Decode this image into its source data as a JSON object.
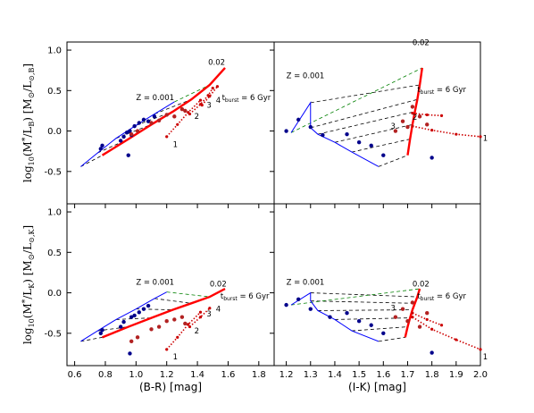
{
  "chart_data": {
    "type": "line",
    "figure_type": "2x2 grid of mass-to-light ratio vs colour model grids with data points",
    "panels": [
      {
        "id": "top-left",
        "xlabel": "",
        "ylabel": "log10(M*/L_B)  [M_sun/L_sun,B]",
        "xlim": [
          0.55,
          1.9
        ],
        "ylim": [
          -0.9,
          1.1
        ],
        "xticks": [],
        "yticks": [
          "1.0",
          "0.5",
          "0.0",
          "-0.5"
        ],
        "annotations": [
          {
            "text": "Z = 0.001",
            "x": 1.0,
            "y": 0.38
          },
          {
            "text": "0.02",
            "x": 1.47,
            "y": 0.82
          },
          {
            "text": "t_burst = 6 Gyr",
            "x": 1.56,
            "y": 0.38
          },
          {
            "text": "1",
            "x": 1.24,
            "y": -0.2
          },
          {
            "text": "2",
            "x": 1.38,
            "y": 0.15
          },
          {
            "text": "3",
            "x": 1.46,
            "y": 0.29
          },
          {
            "text": "4",
            "x": 1.52,
            "y": 0.35
          }
        ],
        "series": [
          {
            "role": "Z=0.001 track",
            "color": "#0000ff",
            "style": "solid",
            "x": [
              0.64,
              0.75,
              0.87,
              1.0,
              1.12,
              1.25
            ],
            "y": [
              -0.44,
              -0.27,
              -0.09,
              0.07,
              0.21,
              0.36
            ]
          },
          {
            "role": "Z=0.02 track",
            "color": "#ff0000",
            "style": "solid",
            "x": [
              0.78,
              0.95,
              1.1,
              1.24,
              1.36,
              1.48,
              1.58
            ],
            "y": [
              -0.3,
              -0.1,
              0.08,
              0.24,
              0.39,
              0.57,
              0.78
            ]
          },
          {
            "role": "model burst track 1",
            "color": "#cc0000",
            "style": "dotted",
            "x": [
              1.2,
              1.27,
              1.34,
              1.42
            ],
            "y": [
              -0.07,
              0.08,
              0.23,
              0.38
            ]
          },
          {
            "role": "model burst track 2",
            "color": "#cc0000",
            "style": "dotted",
            "x": [
              1.35,
              1.42,
              1.47,
              1.5
            ],
            "y": [
              0.21,
              0.33,
              0.44,
              0.53
            ]
          },
          {
            "role": "model burst track 3",
            "color": "#cc0000",
            "style": "dotted",
            "x": [
              1.43,
              1.48,
              1.53
            ],
            "y": [
              0.32,
              0.43,
              0.55
            ]
          },
          {
            "role": "data points (blue)",
            "color": "#00008b",
            "style": "markers",
            "x": [
              0.77,
              0.78,
              0.9,
              0.92,
              0.94,
              0.95,
              0.96,
              0.97,
              0.99,
              1.02,
              1.05,
              1.08,
              1.12
            ],
            "y": [
              -0.22,
              -0.18,
              -0.12,
              -0.07,
              -0.02,
              -0.3,
              0.0,
              -0.05,
              0.06,
              0.1,
              0.14,
              0.12,
              0.18
            ]
          },
          {
            "role": "data points (red)",
            "color": "#b22222",
            "style": "markers",
            "x": [
              0.97,
              1.01,
              1.1,
              1.15,
              1.2,
              1.25,
              1.3,
              1.32
            ],
            "y": [
              -0.04,
              0.0,
              0.1,
              0.13,
              0.2,
              0.18,
              0.27,
              0.25
            ]
          }
        ]
      },
      {
        "id": "top-right",
        "xlabel": "",
        "ylabel": "",
        "xlim": [
          1.15,
          2.0
        ],
        "ylim": [
          -0.9,
          1.1
        ],
        "xticks": [],
        "yticks": [],
        "annotations": [
          {
            "text": "Z = 0.001",
            "x": 1.2,
            "y": 0.65
          },
          {
            "text": "0.02",
            "x": 1.72,
            "y": 1.06
          },
          {
            "text": "t_burst = 6 Gyr",
            "x": 1.74,
            "y": 0.48
          },
          {
            "text": "1",
            "x": 2.01,
            "y": -0.12
          },
          {
            "text": "2",
            "x": 1.72,
            "y": 0.14
          },
          {
            "text": "3",
            "x": 1.63,
            "y": 0.03
          }
        ],
        "series": [
          {
            "role": "Z=0.001 track",
            "color": "#0000ff",
            "style": "solid",
            "x": [
              1.58,
              1.47,
              1.4,
              1.33,
              1.3,
              1.3,
              1.22
            ],
            "y": [
              -0.44,
              -0.26,
              -0.14,
              -0.04,
              0.04,
              0.35,
              -0.02
            ]
          },
          {
            "role": "Z=0.02 track",
            "color": "#ff0000",
            "style": "solid",
            "x": [
              1.7,
              1.71,
              1.72,
              1.73,
              1.74,
              1.75,
              1.76
            ],
            "y": [
              -0.3,
              -0.1,
              0.08,
              0.24,
              0.39,
              0.57,
              0.78
            ]
          },
          {
            "role": "model burst track 1",
            "color": "#cc0000",
            "style": "dotted",
            "x": [
              1.72,
              1.8,
              1.9,
              2.0
            ],
            "y": [
              0.06,
              0.01,
              -0.04,
              -0.07
            ]
          },
          {
            "role": "model burst track 2",
            "color": "#cc0000",
            "style": "dotted",
            "x": [
              1.72,
              1.78,
              1.84
            ],
            "y": [
              0.22,
              0.2,
              0.19
            ]
          },
          {
            "role": "data points (blue)",
            "color": "#00008b",
            "style": "markers",
            "x": [
              1.2,
              1.25,
              1.3,
              1.35,
              1.45,
              1.5,
              1.55,
              1.6,
              1.8
            ],
            "y": [
              0.0,
              0.14,
              0.05,
              -0.05,
              -0.04,
              -0.14,
              -0.18,
              -0.3,
              -0.33
            ]
          },
          {
            "role": "data points (red)",
            "color": "#b22222",
            "style": "markers",
            "x": [
              1.65,
              1.68,
              1.7,
              1.72,
              1.75,
              1.78
            ],
            "y": [
              0.0,
              0.12,
              0.05,
              0.3,
              0.18,
              0.08
            ]
          }
        ]
      },
      {
        "id": "bottom-left",
        "xlabel": "(B-R) [mag]",
        "ylabel": "log10(M*/L_K)  [M_sun/L_sun,K]",
        "xlim": [
          0.55,
          1.9
        ],
        "ylim": [
          -0.9,
          1.1
        ],
        "xticks": [
          "0.6",
          "0.8",
          "1.0",
          "1.2",
          "1.4",
          "1.6",
          "1.8"
        ],
        "yticks": [
          "1.0",
          "0.5",
          "0.0",
          "-0.5"
        ],
        "annotations": [
          {
            "text": "Z = 0.001",
            "x": 1.0,
            "y": 0.1
          },
          {
            "text": "0.02",
            "x": 1.48,
            "y": 0.08
          },
          {
            "text": "t_burst = 6 Gyr",
            "x": 1.55,
            "y": -0.07
          },
          {
            "text": "1",
            "x": 1.24,
            "y": -0.82
          },
          {
            "text": "2",
            "x": 1.38,
            "y": -0.5
          },
          {
            "text": "3",
            "x": 1.46,
            "y": -0.29
          },
          {
            "text": "4",
            "x": 1.52,
            "y": -0.23
          }
        ],
        "series": [
          {
            "role": "Z=0.001 track",
            "color": "#0000ff",
            "style": "solid",
            "x": [
              0.64,
              0.75,
              0.87,
              1.0,
              1.12,
              1.2
            ],
            "y": [
              -0.6,
              -0.47,
              -0.33,
              -0.2,
              -0.07,
              0.01
            ]
          },
          {
            "role": "Z=0.02 track",
            "color": "#ff0000",
            "style": "solid",
            "x": [
              0.78,
              0.95,
              1.1,
              1.24,
              1.36,
              1.48,
              1.58
            ],
            "y": [
              -0.55,
              -0.42,
              -0.31,
              -0.21,
              -0.13,
              -0.05,
              0.05
            ]
          },
          {
            "role": "model burst track 1",
            "color": "#cc0000",
            "style": "dotted",
            "x": [
              1.2,
              1.27,
              1.34,
              1.42
            ],
            "y": [
              -0.7,
              -0.55,
              -0.39,
              -0.24
            ]
          },
          {
            "role": "model burst track 2",
            "color": "#cc0000",
            "style": "dotted",
            "x": [
              1.35,
              1.42,
              1.48
            ],
            "y": [
              -0.42,
              -0.3,
              -0.19
            ]
          },
          {
            "role": "data points (blue)",
            "color": "#00008b",
            "style": "markers",
            "x": [
              0.77,
              0.78,
              0.9,
              0.92,
              0.96,
              0.97,
              0.99,
              1.02,
              1.05,
              1.08
            ],
            "y": [
              -0.5,
              -0.46,
              -0.42,
              -0.36,
              -0.75,
              -0.3,
              -0.28,
              -0.24,
              -0.2,
              -0.16
            ]
          },
          {
            "role": "data points (red)",
            "color": "#b22222",
            "style": "markers",
            "x": [
              0.97,
              1.01,
              1.1,
              1.15,
              1.2,
              1.25,
              1.3,
              1.32
            ],
            "y": [
              -0.6,
              -0.55,
              -0.45,
              -0.42,
              -0.35,
              -0.33,
              -0.3,
              -0.38
            ]
          }
        ]
      },
      {
        "id": "bottom-right",
        "xlabel": "(I-K) [mag]",
        "ylabel": "",
        "xlim": [
          1.15,
          2.0
        ],
        "ylim": [
          -0.9,
          1.1
        ],
        "xticks": [
          "1.2",
          "1.3",
          "1.4",
          "1.5",
          "1.6",
          "1.7",
          "1.8",
          "1.9",
          "2.0"
        ],
        "yticks": [],
        "annotations": [
          {
            "text": "Z = 0.001",
            "x": 1.2,
            "y": 0.1
          },
          {
            "text": "0.02",
            "x": 1.72,
            "y": 0.08
          },
          {
            "text": "t_burst = 6 Gyr",
            "x": 1.74,
            "y": -0.07
          },
          {
            "text": "1",
            "x": 2.01,
            "y": -0.82
          },
          {
            "text": "3",
            "x": 1.63,
            "y": -0.22
          }
        ],
        "series": [
          {
            "role": "Z=0.001 track",
            "color": "#0000ff",
            "style": "solid",
            "x": [
              1.58,
              1.47,
              1.4,
              1.33,
              1.3,
              1.3,
              1.22
            ],
            "y": [
              -0.6,
              -0.47,
              -0.33,
              -0.22,
              -0.1,
              0.0,
              -0.15
            ]
          },
          {
            "role": "Z=0.02 track",
            "color": "#ff0000",
            "style": "solid",
            "x": [
              1.69,
              1.7,
              1.71,
              1.72,
              1.73,
              1.74,
              1.75
            ],
            "y": [
              -0.55,
              -0.42,
              -0.31,
              -0.21,
              -0.13,
              -0.05,
              0.05
            ]
          },
          {
            "role": "model burst track 1",
            "color": "#cc0000",
            "style": "dotted",
            "x": [
              1.72,
              1.8,
              1.9,
              2.0
            ],
            "y": [
              -0.3,
              -0.45,
              -0.58,
              -0.7
            ]
          },
          {
            "role": "model burst track 2",
            "color": "#cc0000",
            "style": "dotted",
            "x": [
              1.72,
              1.78,
              1.84
            ],
            "y": [
              -0.25,
              -0.33,
              -0.4
            ]
          },
          {
            "role": "data points (blue)",
            "color": "#00008b",
            "style": "markers",
            "x": [
              1.2,
              1.25,
              1.3,
              1.38,
              1.45,
              1.5,
              1.55,
              1.6,
              1.8
            ],
            "y": [
              -0.15,
              -0.08,
              -0.2,
              -0.3,
              -0.25,
              -0.35,
              -0.4,
              -0.5,
              -0.74
            ]
          },
          {
            "role": "data points (red)",
            "color": "#b22222",
            "style": "markers",
            "x": [
              1.65,
              1.68,
              1.7,
              1.72,
              1.75,
              1.78
            ],
            "y": [
              -0.3,
              -0.2,
              -0.35,
              -0.12,
              -0.42,
              -0.25
            ]
          }
        ]
      }
    ],
    "grid_lines": {
      "color": "#000000",
      "style": "dashed",
      "count": 7
    },
    "top_grid_line": {
      "color": "#008000",
      "style": "dashed"
    }
  }
}
